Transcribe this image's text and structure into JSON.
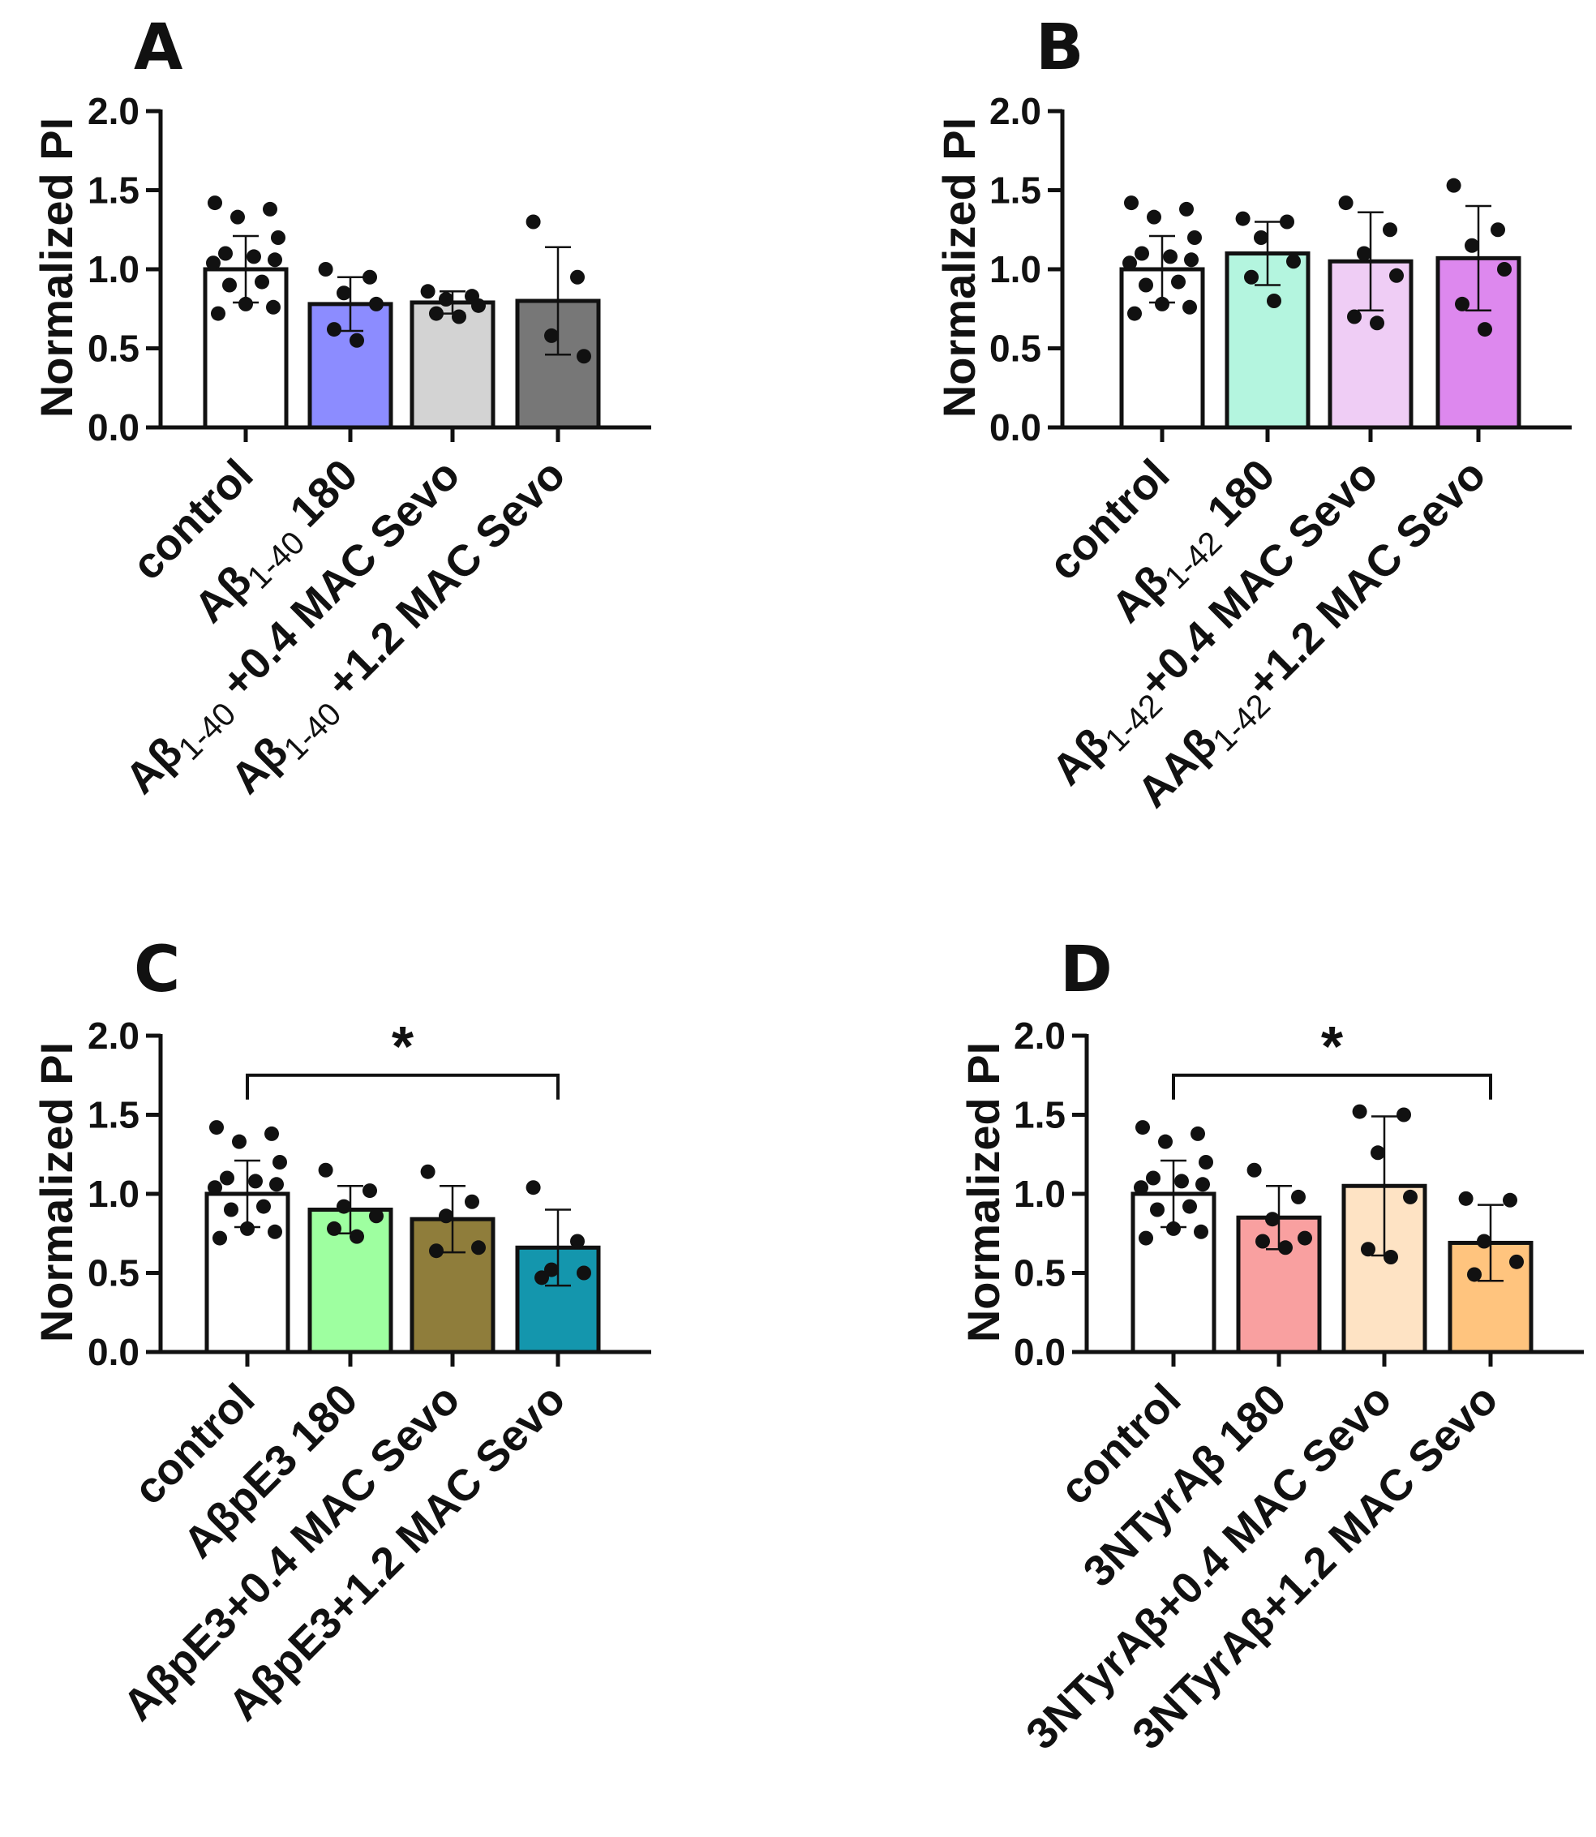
{
  "chart_data": [
    {
      "type": "bar",
      "panel": "A",
      "ylabel": "Normalized PI",
      "ylim": [
        0,
        2.0
      ],
      "yticks": [
        "0.0",
        "0.5",
        "1.0",
        "1.5",
        "2.0"
      ],
      "bar_colors": [
        "#ffffff",
        "#8c8cff",
        "#d3d3d3",
        "#777777"
      ],
      "categories": [
        {
          "main": "control",
          "sub": "",
          "tail": ""
        },
        {
          "main": "Aβ",
          "sub": "1-40",
          "tail": " 180"
        },
        {
          "main": "Aβ",
          "sub": "1-40",
          "tail": " +0.4 MAC Sevo"
        },
        {
          "main": "Aβ",
          "sub": "1-40",
          "tail": " +1.2 MAC Sevo"
        }
      ],
      "values": [
        1.0,
        0.78,
        0.79,
        0.8
      ],
      "errors": [
        0.21,
        0.17,
        0.07,
        0.34
      ],
      "points": [
        [
          1.42,
          1.38,
          1.33,
          1.2,
          1.1,
          1.08,
          1.06,
          1.04,
          0.92,
          0.9,
          0.78,
          0.76,
          0.72
        ],
        [
          1.0,
          0.95,
          0.85,
          0.78,
          0.62,
          0.55
        ],
        [
          0.86,
          0.83,
          0.81,
          0.77,
          0.72,
          0.7
        ],
        [
          1.3,
          0.95,
          0.58,
          0.45
        ]
      ],
      "significance": null
    },
    {
      "type": "bar",
      "panel": "B",
      "ylabel": "Normalized PI",
      "ylim": [
        0,
        2.0
      ],
      "yticks": [
        "0.0",
        "0.5",
        "1.0",
        "1.5",
        "2.0"
      ],
      "bar_colors": [
        "#ffffff",
        "#b4f5df",
        "#efcdf5",
        "#dd88ee"
      ],
      "categories": [
        {
          "main": "control",
          "sub": "",
          "tail": ""
        },
        {
          "main": "Aβ",
          "sub": "1-42",
          "tail": " 180"
        },
        {
          "main": "Aβ",
          "sub": "1-42",
          "tail": "+0.4 MAC Sevo"
        },
        {
          "main": "AAβ",
          "sub": "1-42",
          "tail": "+1.2 MAC Sevo"
        }
      ],
      "values": [
        1.0,
        1.1,
        1.05,
        1.07
      ],
      "errors": [
        0.21,
        0.2,
        0.31,
        0.33
      ],
      "points": [
        [
          1.42,
          1.38,
          1.33,
          1.2,
          1.1,
          1.08,
          1.06,
          1.04,
          0.92,
          0.9,
          0.78,
          0.76,
          0.72
        ],
        [
          1.32,
          1.3,
          1.2,
          1.05,
          0.95,
          0.8
        ],
        [
          1.42,
          1.25,
          1.1,
          0.96,
          0.7,
          0.66
        ],
        [
          1.53,
          1.25,
          1.15,
          1.0,
          0.78,
          0.62
        ]
      ],
      "significance": null
    },
    {
      "type": "bar",
      "panel": "C",
      "ylabel": "Normalized PI",
      "ylim": [
        0,
        2.0
      ],
      "yticks": [
        "0.0",
        "0.5",
        "1.0",
        "1.5",
        "2.0"
      ],
      "bar_colors": [
        "#ffffff",
        "#9effa0",
        "#8f7d3b",
        "#1496ad"
      ],
      "categories": [
        {
          "main": "control",
          "sub": "",
          "tail": ""
        },
        {
          "main": "AβpE3 180",
          "sub": "",
          "tail": ""
        },
        {
          "main": "AβpE3+0.4 MAC Sevo",
          "sub": "",
          "tail": ""
        },
        {
          "main": "AβpE3+1.2 MAC Sevo",
          "sub": "",
          "tail": ""
        }
      ],
      "values": [
        1.0,
        0.9,
        0.84,
        0.66
      ],
      "errors": [
        0.21,
        0.15,
        0.21,
        0.24
      ],
      "points": [
        [
          1.42,
          1.38,
          1.33,
          1.2,
          1.1,
          1.08,
          1.06,
          1.04,
          0.92,
          0.9,
          0.78,
          0.76,
          0.72
        ],
        [
          1.15,
          1.02,
          0.92,
          0.86,
          0.78,
          0.73
        ],
        [
          1.14,
          0.95,
          0.86,
          0.66,
          0.64
        ],
        [
          1.04,
          0.7,
          0.52,
          0.5,
          0.47
        ]
      ],
      "significance": {
        "from": 0,
        "to": 3,
        "label": "*",
        "y": 1.75
      }
    },
    {
      "type": "bar",
      "panel": "D",
      "ylabel": "Normalized PI",
      "ylim": [
        0,
        2.0
      ],
      "yticks": [
        "0.0",
        "0.5",
        "1.0",
        "1.5",
        "2.0"
      ],
      "bar_colors": [
        "#ffffff",
        "#f9a0a0",
        "#fee3c4",
        "#ffc47e"
      ],
      "categories": [
        {
          "main": "control",
          "sub": "",
          "tail": ""
        },
        {
          "main": "3NTyrAβ 180",
          "sub": "",
          "tail": ""
        },
        {
          "main": "3NTyrAβ+0.4 MAC Sevo",
          "sub": "",
          "tail": ""
        },
        {
          "main": "3NTyrAβ+1.2 MAC Sevo",
          "sub": "",
          "tail": ""
        }
      ],
      "values": [
        1.0,
        0.85,
        1.05,
        0.69
      ],
      "errors": [
        0.21,
        0.2,
        0.44,
        0.24
      ],
      "points": [
        [
          1.42,
          1.38,
          1.33,
          1.2,
          1.1,
          1.08,
          1.06,
          1.04,
          0.92,
          0.9,
          0.78,
          0.76,
          0.72
        ],
        [
          1.15,
          0.98,
          0.84,
          0.72,
          0.7,
          0.66
        ],
        [
          1.52,
          1.5,
          1.26,
          0.98,
          0.65,
          0.6
        ],
        [
          0.97,
          0.96,
          0.7,
          0.57,
          0.49
        ]
      ],
      "significance": {
        "from": 0,
        "to": 3,
        "label": "*",
        "y": 1.75
      }
    }
  ]
}
